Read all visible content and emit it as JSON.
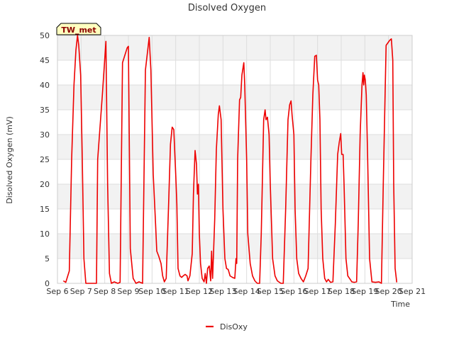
{
  "chart_data": {
    "type": "line",
    "title": "Disolved Oxygen",
    "xlabel": "Time",
    "ylabel": "Disolved Oxygen (mV)",
    "ylim": [
      0,
      50
    ],
    "yticks": [
      0,
      5,
      10,
      15,
      20,
      25,
      30,
      35,
      40,
      45,
      50
    ],
    "xlim": [
      6,
      21
    ],
    "xticks": [
      {
        "x": 6,
        "label": "Sep 6"
      },
      {
        "x": 7,
        "label": "Sep 7"
      },
      {
        "x": 8,
        "label": "Sep 8"
      },
      {
        "x": 9,
        "label": "Sep 9"
      },
      {
        "x": 10,
        "label": "Sep 10"
      },
      {
        "x": 11,
        "label": "Sep 11"
      },
      {
        "x": 12,
        "label": "Sep 12"
      },
      {
        "x": 13,
        "label": "Sep 13"
      },
      {
        "x": 14,
        "label": "Sep 14"
      },
      {
        "x": 15,
        "label": "Sep 15"
      },
      {
        "x": 16,
        "label": "Sep 16"
      },
      {
        "x": 17,
        "label": "Sep 17"
      },
      {
        "x": 18,
        "label": "Sep 18"
      },
      {
        "x": 19,
        "label": "Sep 19"
      },
      {
        "x": 20,
        "label": "Sep 20"
      },
      {
        "x": 21,
        "label": "Sep 21"
      }
    ],
    "grid": true,
    "station_label": "TW_met",
    "legend": {
      "position": "bottom-center",
      "entries": [
        "DisOxy"
      ]
    },
    "series": [
      {
        "name": "DisOxy",
        "color": "#ee0000",
        "points": [
          [
            6.25,
            0.5
          ],
          [
            6.35,
            0.2
          ],
          [
            6.5,
            2.5
          ],
          [
            6.6,
            25
          ],
          [
            6.7,
            40
          ],
          [
            6.78,
            47
          ],
          [
            6.85,
            50
          ],
          [
            6.9,
            48
          ],
          [
            6.98,
            42
          ],
          [
            7.05,
            25
          ],
          [
            7.12,
            5
          ],
          [
            7.2,
            0
          ],
          [
            7.35,
            0
          ],
          [
            7.5,
            0
          ],
          [
            7.65,
            0
          ],
          [
            7.7,
            25
          ],
          [
            7.9,
            38
          ],
          [
            8.05,
            48.8
          ],
          [
            8.12,
            20
          ],
          [
            8.2,
            2
          ],
          [
            8.28,
            0
          ],
          [
            8.4,
            0.3
          ],
          [
            8.55,
            0
          ],
          [
            8.65,
            0.2
          ],
          [
            8.75,
            44.5
          ],
          [
            8.95,
            47.5
          ],
          [
            9.0,
            47.8
          ],
          [
            9.08,
            7
          ],
          [
            9.2,
            1
          ],
          [
            9.32,
            0
          ],
          [
            9.45,
            0.3
          ],
          [
            9.6,
            0
          ],
          [
            9.72,
            43
          ],
          [
            9.88,
            49.6
          ],
          [
            9.95,
            43
          ],
          [
            10.05,
            22
          ],
          [
            10.15,
            12
          ],
          [
            10.2,
            6.5
          ],
          [
            10.28,
            5.5
          ],
          [
            10.38,
            4
          ],
          [
            10.45,
            1.5
          ],
          [
            10.52,
            0.3
          ],
          [
            10.6,
            1
          ],
          [
            10.7,
            16
          ],
          [
            10.78,
            28
          ],
          [
            10.85,
            31.5
          ],
          [
            10.92,
            31
          ],
          [
            11.0,
            22
          ],
          [
            11.05,
            16
          ],
          [
            11.1,
            3
          ],
          [
            11.18,
            1.5
          ],
          [
            11.25,
            1.2
          ],
          [
            11.32,
            1.5
          ],
          [
            11.4,
            1.8
          ],
          [
            11.48,
            1.5
          ],
          [
            11.52,
            0.5
          ],
          [
            11.6,
            1.5
          ],
          [
            11.7,
            6
          ],
          [
            11.75,
            18
          ],
          [
            11.82,
            26.8
          ],
          [
            11.88,
            24
          ],
          [
            11.92,
            18
          ],
          [
            11.96,
            20
          ],
          [
            12.0,
            10
          ],
          [
            12.05,
            4
          ],
          [
            12.12,
            1
          ],
          [
            12.2,
            0.3
          ],
          [
            12.25,
            2
          ],
          [
            12.3,
            0
          ],
          [
            12.35,
            3
          ],
          [
            12.42,
            3.5
          ],
          [
            12.48,
            0.5
          ],
          [
            12.52,
            6.5
          ],
          [
            12.56,
            1
          ],
          [
            12.6,
            6
          ],
          [
            12.65,
            13
          ],
          [
            12.72,
            27
          ],
          [
            12.8,
            34
          ],
          [
            12.85,
            35.8
          ],
          [
            12.92,
            33
          ],
          [
            13.0,
            15
          ],
          [
            13.08,
            5
          ],
          [
            13.15,
            3
          ],
          [
            13.22,
            2.8
          ],
          [
            13.3,
            1.5
          ],
          [
            13.4,
            1.2
          ],
          [
            13.5,
            1
          ],
          [
            13.55,
            5
          ],
          [
            13.58,
            4
          ],
          [
            13.62,
            25
          ],
          [
            13.7,
            37
          ],
          [
            13.75,
            37.5
          ],
          [
            13.8,
            42
          ],
          [
            13.88,
            44.5
          ],
          [
            13.92,
            40
          ],
          [
            14.0,
            25
          ],
          [
            14.05,
            10
          ],
          [
            14.15,
            4
          ],
          [
            14.25,
            1.5
          ],
          [
            14.35,
            0.5
          ],
          [
            14.45,
            0
          ],
          [
            14.55,
            0
          ],
          [
            14.62,
            10
          ],
          [
            14.72,
            33
          ],
          [
            14.78,
            35
          ],
          [
            14.82,
            33
          ],
          [
            14.88,
            33.5
          ],
          [
            14.95,
            30
          ],
          [
            15.0,
            20
          ],
          [
            15.1,
            5
          ],
          [
            15.2,
            1.5
          ],
          [
            15.3,
            0.5
          ],
          [
            15.45,
            0
          ],
          [
            15.55,
            0
          ],
          [
            15.65,
            15
          ],
          [
            15.75,
            33
          ],
          [
            15.82,
            36
          ],
          [
            15.88,
            36.8
          ],
          [
            15.92,
            34
          ],
          [
            16.0,
            30
          ],
          [
            16.05,
            15
          ],
          [
            16.12,
            5
          ],
          [
            16.2,
            2
          ],
          [
            16.3,
            1
          ],
          [
            16.4,
            0.3
          ],
          [
            16.5,
            1.5
          ],
          [
            16.6,
            3
          ],
          [
            16.72,
            25
          ],
          [
            16.8,
            38
          ],
          [
            16.88,
            45.8
          ],
          [
            16.95,
            46
          ],
          [
            17.0,
            41
          ],
          [
            17.05,
            40
          ],
          [
            17.1,
            33
          ],
          [
            17.15,
            15
          ],
          [
            17.22,
            5
          ],
          [
            17.3,
            1
          ],
          [
            17.38,
            0.3
          ],
          [
            17.45,
            0.8
          ],
          [
            17.55,
            0.2
          ],
          [
            17.65,
            0.3
          ],
          [
            17.75,
            12
          ],
          [
            17.85,
            26
          ],
          [
            17.92,
            28.5
          ],
          [
            17.98,
            30.2
          ],
          [
            18.02,
            26
          ],
          [
            18.08,
            26
          ],
          [
            18.12,
            20
          ],
          [
            18.2,
            5
          ],
          [
            18.28,
            1.5
          ],
          [
            18.38,
            0.8
          ],
          [
            18.45,
            0.3
          ],
          [
            18.55,
            0.2
          ],
          [
            18.65,
            0.3
          ],
          [
            18.72,
            12
          ],
          [
            18.8,
            30
          ],
          [
            18.88,
            40
          ],
          [
            18.92,
            42.5
          ],
          [
            18.95,
            40
          ],
          [
            18.98,
            42
          ],
          [
            19.02,
            41
          ],
          [
            19.06,
            38
          ],
          [
            19.12,
            25
          ],
          [
            19.2,
            5
          ],
          [
            19.3,
            0.3
          ],
          [
            19.45,
            0.2
          ],
          [
            19.6,
            0.3
          ],
          [
            19.7,
            0
          ],
          [
            19.78,
            20
          ],
          [
            19.85,
            37
          ],
          [
            19.9,
            48
          ],
          [
            20.05,
            49
          ],
          [
            20.12,
            49.3
          ],
          [
            20.18,
            45
          ],
          [
            20.22,
            20
          ],
          [
            20.28,
            3
          ],
          [
            20.35,
            0.2
          ]
        ]
      }
    ]
  }
}
